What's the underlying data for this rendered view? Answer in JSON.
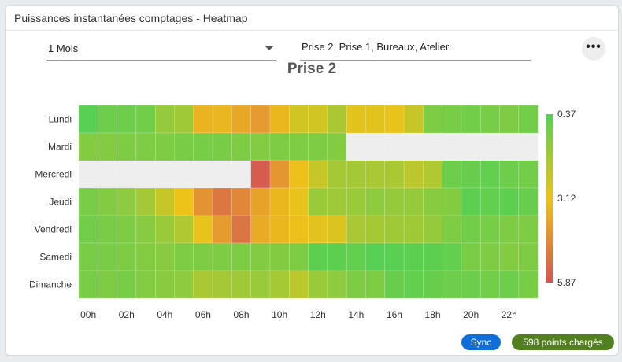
{
  "card": {
    "title": "Puissances instantanées comptages - Heatmap"
  },
  "filters": {
    "period_value": "1 Mois",
    "meters_value": "Prise 2, Prise 1, Bureaux, Atelier",
    "menu_icon": "more-horizontal-icon",
    "period_icon": "chevron-down-icon"
  },
  "chart_data": {
    "type": "heatmap",
    "title": "Prise 2",
    "y_categories": [
      "Lundi",
      "Mardi",
      "Mercredi",
      "Jeudi",
      "Vendredi",
      "Samedi",
      "Dimanche"
    ],
    "x_categories": [
      "00h",
      "01h",
      "02h",
      "03h",
      "04h",
      "05h",
      "06h",
      "07h",
      "08h",
      "09h",
      "10h",
      "11h",
      "12h",
      "13h",
      "14h",
      "15h",
      "16h",
      "17h",
      "18h",
      "19h",
      "20h",
      "21h",
      "22h",
      "23h"
    ],
    "x_tick_labels": [
      "00h",
      "02h",
      "04h",
      "06h",
      "08h",
      "10h",
      "12h",
      "14h",
      "16h",
      "18h",
      "20h",
      "22h"
    ],
    "values": [
      [
        0.4,
        0.8,
        0.8,
        0.9,
        1.5,
        1.7,
        3.5,
        3.4,
        3.8,
        4.1,
        3.4,
        2.6,
        2.6,
        1.9,
        2.9,
        2.9,
        3.0,
        2.4,
        1.1,
        1.0,
        0.9,
        1.0,
        1.1,
        0.9
      ],
      [
        1.2,
        1.2,
        1.1,
        1.1,
        1.1,
        1.0,
        1.0,
        1.0,
        1.1,
        1.2,
        1.1,
        1.1,
        1.1,
        1.2,
        null,
        null,
        null,
        null,
        null,
        null,
        null,
        null,
        null,
        null
      ],
      [
        null,
        null,
        null,
        null,
        null,
        null,
        null,
        null,
        null,
        5.7,
        4.2,
        3.2,
        2.4,
        1.8,
        1.8,
        1.9,
        1.9,
        2.2,
        2.0,
        0.8,
        0.7,
        0.6,
        0.8,
        0.9
      ],
      [
        1.0,
        1.2,
        1.4,
        1.8,
        2.4,
        3.1,
        4.3,
        5.0,
        4.6,
        3.9,
        3.4,
        3.0,
        1.6,
        1.7,
        1.6,
        1.4,
        1.5,
        1.5,
        1.3,
        1.2,
        0.5,
        0.6,
        0.5,
        0.7
      ],
      [
        0.9,
        1.0,
        1.1,
        1.3,
        1.6,
        2.0,
        3.0,
        4.1,
        5.1,
        3.7,
        3.4,
        3.2,
        2.9,
        2.8,
        1.9,
        1.8,
        1.7,
        1.7,
        1.5,
        1.1,
        0.9,
        1.0,
        1.1,
        1.1
      ],
      [
        1.0,
        1.0,
        1.1,
        1.2,
        1.3,
        1.1,
        1.1,
        1.1,
        1.1,
        1.2,
        1.2,
        1.1,
        0.5,
        0.5,
        0.6,
        0.4,
        0.4,
        0.5,
        0.5,
        0.6,
        1.0,
        1.1,
        1.2,
        1.1
      ],
      [
        1.0,
        1.1,
        1.0,
        1.2,
        1.3,
        1.4,
        1.9,
        1.8,
        1.7,
        1.6,
        1.8,
        2.2,
        1.6,
        1.4,
        1.1,
        1.1,
        0.7,
        0.6,
        0.7,
        0.8,
        0.8,
        0.9,
        0.8,
        1.0
      ]
    ],
    "color_scale": {
      "min": 0.37,
      "mid": 3.12,
      "max": 5.87,
      "min_color": "#55d054",
      "mid_color": "#eec219",
      "max_color": "#d45553"
    },
    "legend_labels": [
      "0.37",
      "3.12",
      "5.87"
    ],
    "legend_placement": "right",
    "missing_color": "#eeeeee"
  },
  "footer": {
    "sync_label": "Sync",
    "sync_color": "#0f6ed9",
    "points_label": "598 points chargés",
    "points_color": "#52801f"
  }
}
